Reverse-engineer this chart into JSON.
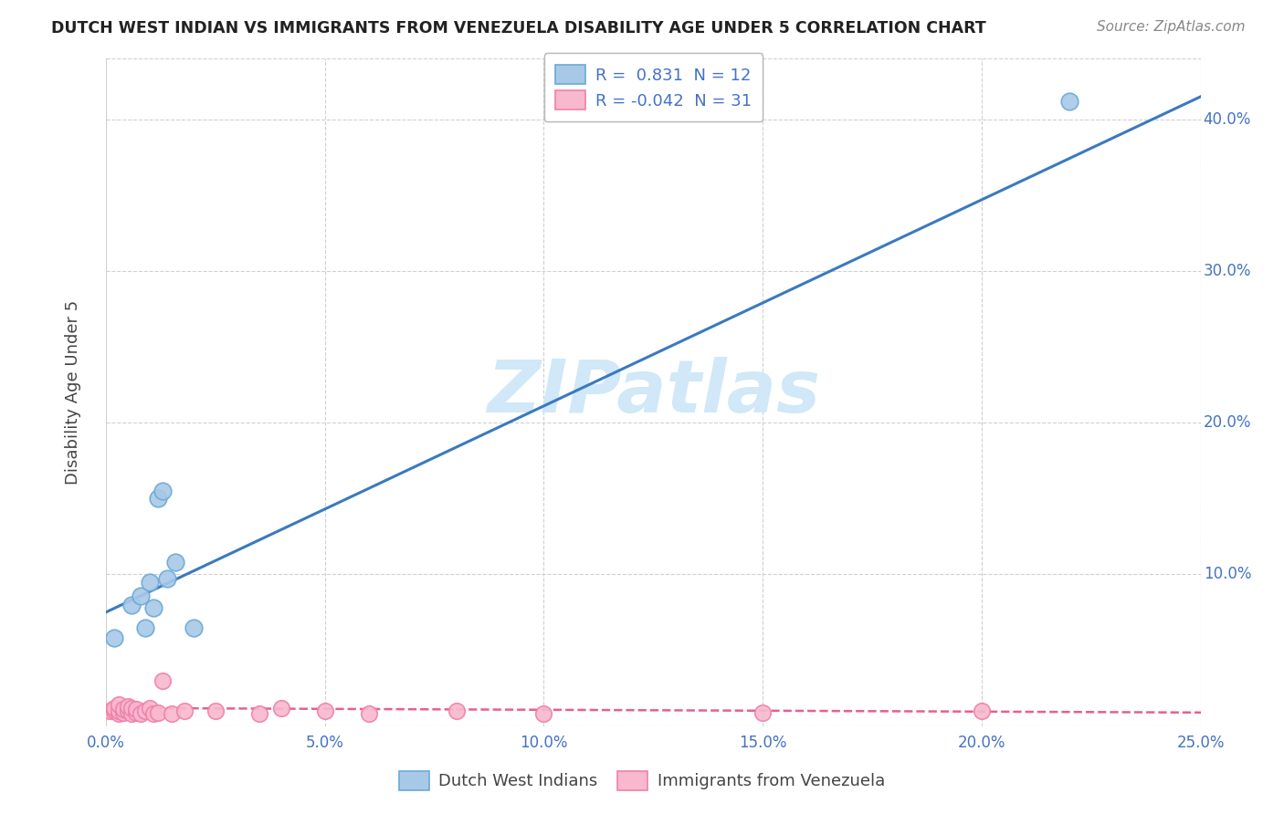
{
  "title": "DUTCH WEST INDIAN VS IMMIGRANTS FROM VENEZUELA DISABILITY AGE UNDER 5 CORRELATION CHART",
  "source": "Source: ZipAtlas.com",
  "ylabel": "Disability Age Under 5",
  "xlim": [
    0.0,
    0.25
  ],
  "ylim": [
    0.0,
    0.44
  ],
  "xtick_vals": [
    0.0,
    0.05,
    0.1,
    0.15,
    0.2,
    0.25
  ],
  "xtick_labels": [
    "0.0%",
    "5.0%",
    "10.0%",
    "15.0%",
    "20.0%",
    "25.0%"
  ],
  "ytick_vals": [
    0.1,
    0.2,
    0.3,
    0.4
  ],
  "ytick_labels": [
    "10.0%",
    "20.0%",
    "30.0%",
    "40.0%"
  ],
  "blue_scatter_color": "#a8c8e8",
  "blue_scatter_edge": "#6aaad4",
  "blue_line_color": "#3a7abf",
  "pink_scatter_color": "#f8b8ce",
  "pink_scatter_edge": "#f080a8",
  "pink_line_color": "#e8608a",
  "tick_label_color": "#4472c4",
  "ylabel_color": "#444444",
  "title_color": "#222222",
  "source_color": "#888888",
  "grid_color": "#d0d0d0",
  "legend_r_blue": "0.831",
  "legend_n_blue": "12",
  "legend_r_pink": "-0.042",
  "legend_n_pink": "31",
  "blue_line_x0": 0.0,
  "blue_line_x1": 0.25,
  "blue_line_y0": 0.075,
  "blue_line_y1": 0.415,
  "pink_line_x0": 0.0,
  "pink_line_x1": 0.25,
  "pink_line_y0": 0.012,
  "pink_line_y1": 0.009,
  "blue_x": [
    0.002,
    0.006,
    0.008,
    0.009,
    0.01,
    0.011,
    0.012,
    0.013,
    0.014,
    0.016,
    0.02,
    0.22
  ],
  "blue_y": [
    0.058,
    0.08,
    0.086,
    0.065,
    0.095,
    0.078,
    0.15,
    0.155,
    0.097,
    0.108,
    0.065,
    0.412
  ],
  "pink_x": [
    0.001,
    0.002,
    0.002,
    0.003,
    0.003,
    0.003,
    0.004,
    0.004,
    0.005,
    0.005,
    0.006,
    0.006,
    0.007,
    0.007,
    0.008,
    0.009,
    0.01,
    0.011,
    0.012,
    0.013,
    0.015,
    0.018,
    0.025,
    0.035,
    0.04,
    0.05,
    0.06,
    0.08,
    0.1,
    0.15,
    0.2
  ],
  "pink_y": [
    0.01,
    0.01,
    0.012,
    0.008,
    0.01,
    0.014,
    0.009,
    0.011,
    0.01,
    0.013,
    0.008,
    0.012,
    0.009,
    0.011,
    0.008,
    0.01,
    0.012,
    0.008,
    0.009,
    0.03,
    0.008,
    0.01,
    0.01,
    0.008,
    0.012,
    0.01,
    0.008,
    0.01,
    0.008,
    0.009,
    0.01
  ],
  "watermark_text": "ZIPatlas",
  "watermark_color": "#d0e8f8",
  "bg_color": "#ffffff",
  "legend_label_blue": "Dutch West Indians",
  "legend_label_pink": "Immigrants from Venezuela"
}
